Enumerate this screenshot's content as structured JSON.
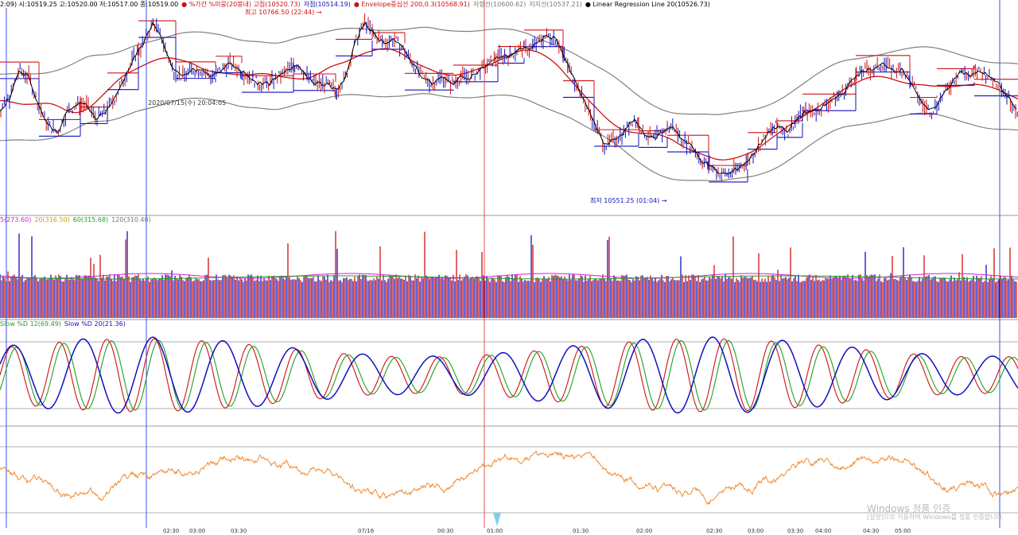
{
  "header": {
    "items": [
      {
        "text": "2:09) 시:10519.25 고:10520.00 저:10517.00 종:10519.00",
        "color": "#000000"
      },
      {
        "text": "● %가간 %미뭉(20봉내) 고점(10520.73)",
        "color": "#d01010"
      },
      {
        "text": "저점(10514.19)",
        "color": "#1010c0"
      },
      {
        "text": "● Envelope중심선 200,0.3(10568.91)",
        "color": "#d01010"
      },
      {
        "text": "저항선(10600.62)",
        "color": "#777777"
      },
      {
        "text": "지지선(10537.21)",
        "color": "#777777"
      },
      {
        "text": "● Linear Regression Line 20(10526.73)",
        "color": "#000000"
      }
    ]
  },
  "annotations": {
    "high_label": "최고 10766.50 (22:44) →",
    "low_label": "최저 10551.25 (01:04) →",
    "date_label": "2020/07/15(수) 20:04:05"
  },
  "volume_legend": [
    {
      "text": "5(273.60)",
      "color": "#d020d0"
    },
    {
      "text": "20(316.50)",
      "color": "#d0a000"
    },
    {
      "text": "60(315.68)",
      "color": "#20a020"
    },
    {
      "text": "120(310.40)",
      "color": "#777777"
    }
  ],
  "stoch_legend": [
    {
      "text": "Slow %D 12(69.49)",
      "color": "#20a020"
    },
    {
      "text": "Slow %D 20(21.36)",
      "color": "#1010c0"
    }
  ],
  "x_ticks": [
    "02:30",
    "03:00",
    "03:30",
    "07/16",
    "00:30",
    "01:00",
    "01:30",
    "02:00",
    "02:30",
    "03:00",
    "03:30",
    "04:00",
    "04:30",
    "05:00"
  ],
  "watermark": {
    "line1": "Windows 정품 인증",
    "line2": "[설정]으로 이동하여 Windows를 정품 인증합니다."
  },
  "colors": {
    "up": "#d01010",
    "down": "#1010c0",
    "envelope": "#808080",
    "orange": "#f08a30",
    "divider": "#9a9a9a"
  },
  "chart_data": {
    "type": "line",
    "description_fields_only_from_screen": true,
    "price": {
      "last": 10519.0,
      "high": 10766.5,
      "low": 10551.25,
      "ylim": [
        10500,
        10790
      ],
      "series": [
        10640,
        10660,
        10700,
        10690,
        10650,
        10620,
        10610,
        10640,
        10650,
        10650,
        10630,
        10640,
        10660,
        10690,
        10720,
        10740,
        10770,
        10740,
        10700,
        10690,
        10700,
        10700,
        10690,
        10700,
        10710,
        10700,
        10690,
        10680,
        10680,
        10690,
        10700,
        10710,
        10690,
        10680,
        10680,
        10670,
        10690,
        10740,
        10770,
        10750,
        10740,
        10745,
        10730,
        10710,
        10690,
        10680,
        10690,
        10680,
        10690,
        10690,
        10700,
        10710,
        10720,
        10720,
        10730,
        10730,
        10740,
        10750,
        10745,
        10710,
        10680,
        10650,
        10620,
        10590,
        10600,
        10610,
        10630,
        10610,
        10600,
        10610,
        10620,
        10600,
        10590,
        10570,
        10560,
        10550,
        10550,
        10560,
        10570,
        10590,
        10610,
        10620,
        10610,
        10630,
        10640,
        10640,
        10650,
        10660,
        10670,
        10690,
        10700,
        10700,
        10710,
        10700,
        10700,
        10680,
        10650,
        10640,
        10660,
        10680,
        10700,
        10690,
        10700,
        10690,
        10680,
        10660,
        10640
      ]
    },
    "linear_regression_20": {
      "last": 10526.73
    },
    "envelope_200": {
      "center": 10568.91,
      "upper": 10600.62,
      "lower": 10537.21
    },
    "volume_ma": [
      {
        "name": "5",
        "value": 273.6
      },
      {
        "name": "20",
        "value": 316.5
      },
      {
        "name": "60",
        "value": 315.68
      },
      {
        "name": "120",
        "value": 310.4
      }
    ],
    "stochastic": [
      {
        "name": "Slow %D 12",
        "value": 69.49
      },
      {
        "name": "Slow %D 20",
        "value": 21.36
      }
    ]
  }
}
